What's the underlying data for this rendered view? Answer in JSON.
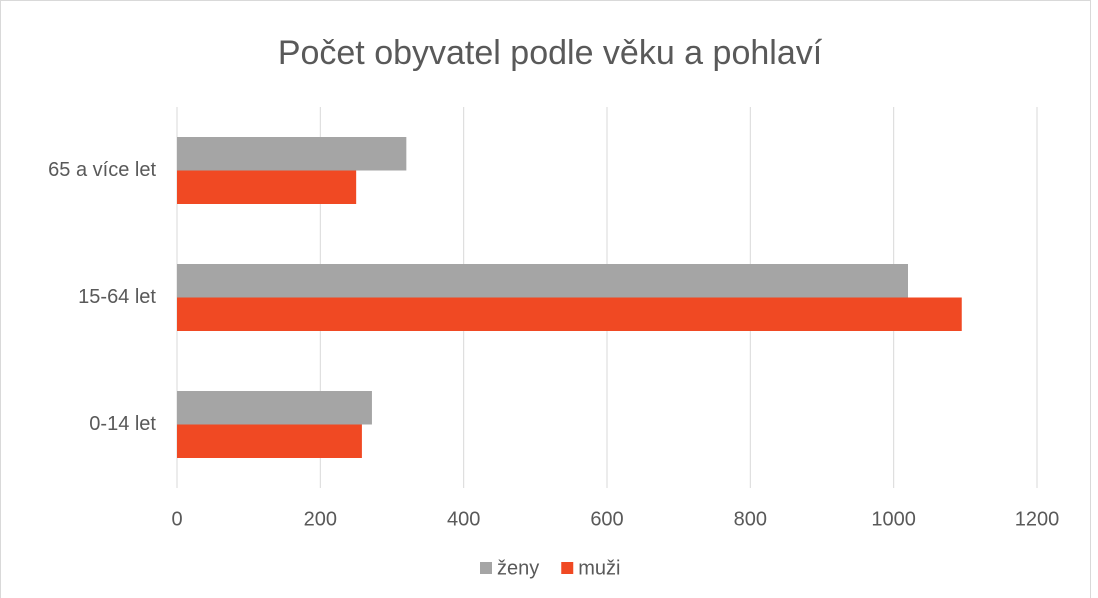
{
  "chart_data": {
    "type": "bar",
    "orientation": "horizontal",
    "title": "Počet obyvatel podle věku a pohlaví",
    "categories": [
      "0-14 let",
      "15-64 let",
      "65 a více let"
    ],
    "series": [
      {
        "name": "ženy",
        "color": "#a5a5a5",
        "values": [
          272,
          1020,
          320
        ]
      },
      {
        "name": "muži",
        "color": "#f04923",
        "values": [
          258,
          1095,
          250
        ]
      }
    ],
    "xlim": [
      0,
      1200
    ],
    "xticks": [
      0,
      200,
      400,
      600,
      800,
      1000,
      1200
    ],
    "grid": true,
    "legend": "bottom"
  }
}
